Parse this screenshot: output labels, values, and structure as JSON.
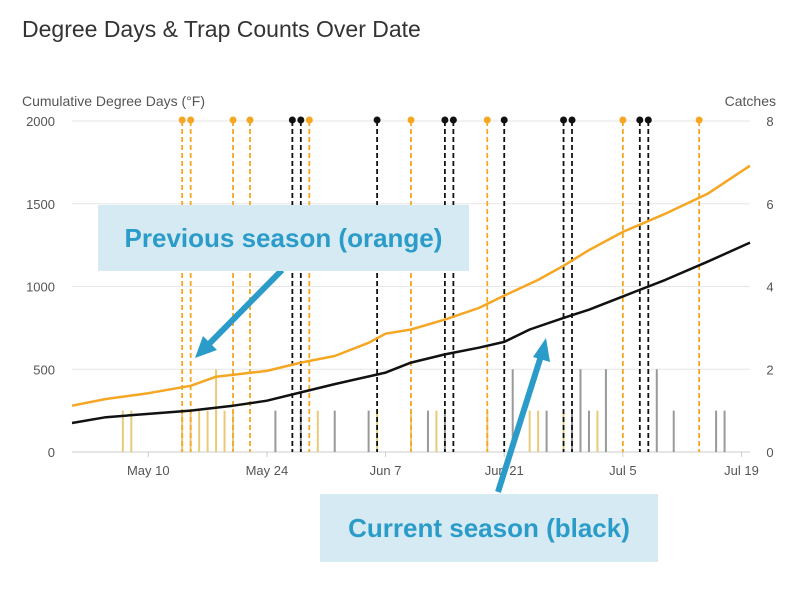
{
  "chart_data": {
    "type": "line",
    "title": "Degree Days & Trap Counts Over Date",
    "ylabel_left": "Cumulative Degree Days (°F)",
    "ylabel_right": "Catches",
    "x_range": [
      "2021-05-01",
      "2021-07-20"
    ],
    "x_ticks": [
      {
        "date": "2021-05-10",
        "label": "May 10"
      },
      {
        "date": "2021-05-24",
        "label": "May 24"
      },
      {
        "date": "2021-06-07",
        "label": "Jun 7"
      },
      {
        "date": "2021-06-21",
        "label": "Jun 21"
      },
      {
        "date": "2021-07-05",
        "label": "Jul 5"
      },
      {
        "date": "2021-07-19",
        "label": "Jul 19"
      }
    ],
    "y_left_range": [
      0,
      2000
    ],
    "y_left_ticks": [
      0,
      500,
      1000,
      1500,
      2000
    ],
    "y_right_range": [
      0,
      8
    ],
    "y_right_ticks": [
      0,
      2,
      4,
      6,
      8
    ],
    "colors": {
      "previous_line": "#f5a623",
      "current_line": "#111111",
      "previous_bar": "#e8cb7a",
      "current_bar": "#999999",
      "grid": "#e6e6e6"
    },
    "series": [
      {
        "name": "Previous season (orange)",
        "points": [
          [
            "2021-05-01",
            280
          ],
          [
            "2021-05-05",
            320
          ],
          [
            "2021-05-10",
            355
          ],
          [
            "2021-05-15",
            400
          ],
          [
            "2021-05-18",
            455
          ],
          [
            "2021-05-24",
            490
          ],
          [
            "2021-05-28",
            540
          ],
          [
            "2021-06-01",
            580
          ],
          [
            "2021-06-05",
            660
          ],
          [
            "2021-06-07",
            715
          ],
          [
            "2021-06-10",
            740
          ],
          [
            "2021-06-14",
            800
          ],
          [
            "2021-06-18",
            870
          ],
          [
            "2021-06-21",
            945
          ],
          [
            "2021-06-25",
            1040
          ],
          [
            "2021-06-28",
            1125
          ],
          [
            "2021-07-01",
            1220
          ],
          [
            "2021-07-05",
            1330
          ],
          [
            "2021-07-10",
            1440
          ],
          [
            "2021-07-15",
            1560
          ],
          [
            "2021-07-20",
            1730
          ]
        ]
      },
      {
        "name": "Current season (black)",
        "points": [
          [
            "2021-05-01",
            175
          ],
          [
            "2021-05-05",
            210
          ],
          [
            "2021-05-10",
            230
          ],
          [
            "2021-05-15",
            250
          ],
          [
            "2021-05-20",
            280
          ],
          [
            "2021-05-24",
            310
          ],
          [
            "2021-05-28",
            360
          ],
          [
            "2021-06-01",
            410
          ],
          [
            "2021-06-07",
            480
          ],
          [
            "2021-06-10",
            540
          ],
          [
            "2021-06-14",
            590
          ],
          [
            "2021-06-18",
            630
          ],
          [
            "2021-06-21",
            665
          ],
          [
            "2021-06-24",
            740
          ],
          [
            "2021-06-28",
            810
          ],
          [
            "2021-07-01",
            860
          ],
          [
            "2021-07-05",
            940
          ],
          [
            "2021-07-10",
            1040
          ],
          [
            "2021-07-15",
            1150
          ],
          [
            "2021-07-20",
            1265
          ]
        ]
      }
    ],
    "previous_catch_dates": [
      "2021-05-14",
      "2021-05-15",
      "2021-05-20",
      "2021-05-22",
      "2021-05-29",
      "2021-06-10",
      "2021-06-19",
      "2021-07-05",
      "2021-07-14"
    ],
    "current_catch_dates": [
      "2021-05-27",
      "2021-05-28",
      "2021-06-06",
      "2021-06-14",
      "2021-06-15",
      "2021-06-21",
      "2021-06-28",
      "2021-06-29",
      "2021-07-07",
      "2021-07-08"
    ],
    "previous_catch_bars": [
      [
        "2021-05-07",
        1
      ],
      [
        "2021-05-08",
        1
      ],
      [
        "2021-05-14",
        1
      ],
      [
        "2021-05-15",
        1
      ],
      [
        "2021-05-16",
        1
      ],
      [
        "2021-05-17",
        1
      ],
      [
        "2021-05-18",
        2
      ],
      [
        "2021-05-19",
        1
      ],
      [
        "2021-05-20",
        1
      ],
      [
        "2021-05-30",
        1
      ],
      [
        "2021-06-06",
        1
      ],
      [
        "2021-06-10",
        1
      ],
      [
        "2021-06-13",
        1
      ],
      [
        "2021-06-19",
        1
      ],
      [
        "2021-06-24",
        1
      ],
      [
        "2021-06-25",
        1
      ],
      [
        "2021-06-28",
        1
      ],
      [
        "2021-07-02",
        1
      ]
    ],
    "current_catch_bars": [
      [
        "2021-05-25",
        1
      ],
      [
        "2021-05-28",
        1
      ],
      [
        "2021-06-01",
        1
      ],
      [
        "2021-06-05",
        1
      ],
      [
        "2021-06-12",
        1
      ],
      [
        "2021-06-14",
        1
      ],
      [
        "2021-06-22",
        2
      ],
      [
        "2021-06-26",
        1
      ],
      [
        "2021-06-29",
        1
      ],
      [
        "2021-06-30",
        2
      ],
      [
        "2021-07-01",
        1
      ],
      [
        "2021-07-03",
        2
      ],
      [
        "2021-07-09",
        2
      ],
      [
        "2021-07-11",
        1
      ],
      [
        "2021-07-16",
        1
      ],
      [
        "2021-07-17",
        1
      ]
    ]
  },
  "callouts": {
    "previous": "Previous season (orange)",
    "current": "Current season (black)"
  }
}
